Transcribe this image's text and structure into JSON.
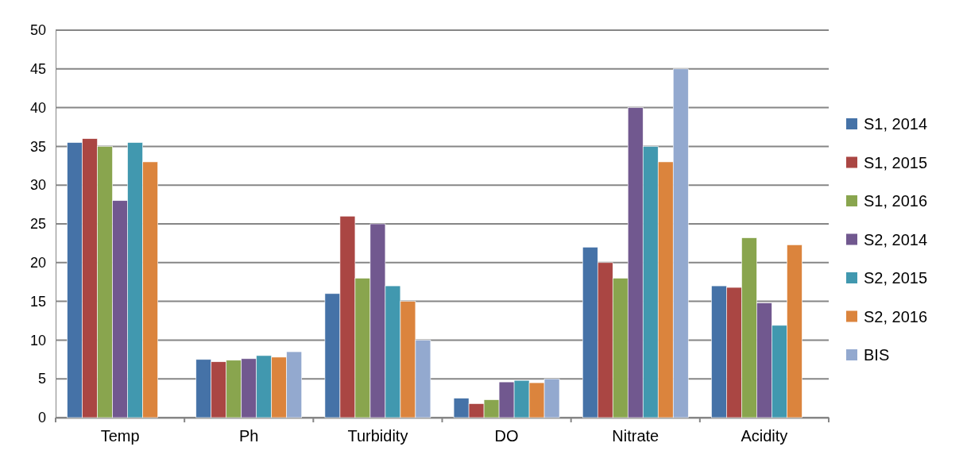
{
  "chart_data": {
    "type": "bar",
    "categories": [
      "Temp",
      "Ph",
      "Turbidity",
      "DO",
      "Nitrate",
      "Acidity"
    ],
    "series": [
      {
        "name": "S1, 2014",
        "color": "#4572a7",
        "values": [
          35.5,
          7.5,
          16,
          2.5,
          22,
          17
        ]
      },
      {
        "name": "S1, 2015",
        "color": "#aa4643",
        "values": [
          36,
          7.2,
          26,
          1.8,
          20,
          16.8
        ]
      },
      {
        "name": "S1, 2016",
        "color": "#89a54e",
        "values": [
          35,
          7.4,
          18,
          2.3,
          18,
          23.2
        ]
      },
      {
        "name": "S2, 2014",
        "color": "#71588f",
        "values": [
          28,
          7.6,
          25,
          4.6,
          40,
          14.8
        ]
      },
      {
        "name": "S2, 2015",
        "color": "#4198af",
        "values": [
          35.5,
          8,
          17,
          4.8,
          35,
          11.9
        ]
      },
      {
        "name": "S2, 2016",
        "color": "#db843d",
        "values": [
          33,
          7.8,
          15,
          4.5,
          33,
          22.3
        ]
      },
      {
        "name": "BIS",
        "color": "#93a9cf",
        "values": [
          null,
          8.5,
          10,
          5,
          45,
          null
        ]
      }
    ],
    "ylim": [
      0,
      50
    ],
    "yticks": [
      0,
      5,
      10,
      15,
      20,
      25,
      30,
      35,
      40,
      45,
      50
    ],
    "grid": "y",
    "legend": "right"
  }
}
